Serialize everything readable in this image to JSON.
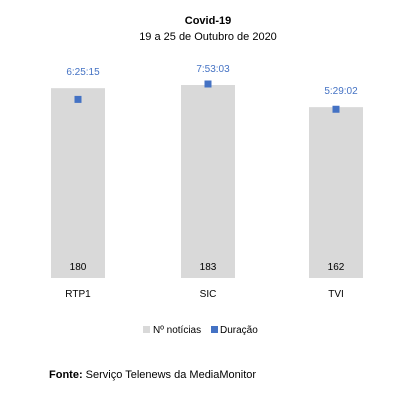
{
  "chart_data": {
    "type": "bar",
    "title": "Covid-19",
    "subtitle": "19 a 25 de Outubro de 2020",
    "categories": [
      "RTP1",
      "SIC",
      "TVI"
    ],
    "series": [
      {
        "name": "Nº notícias",
        "kind": "bar",
        "values": [
          180,
          183,
          162
        ],
        "color": "#D9D9D9"
      },
      {
        "name": "Duração",
        "kind": "marker",
        "values": [
          "6:25:15",
          "7:53:03",
          "5:29:02"
        ],
        "seconds": [
          23115,
          28383,
          19742
        ],
        "color": "#4472C4"
      }
    ],
    "grid": false,
    "legend": "bottom"
  },
  "source": {
    "label": "Fonte:",
    "text": " Serviço Telenews da MediaMonitor"
  }
}
